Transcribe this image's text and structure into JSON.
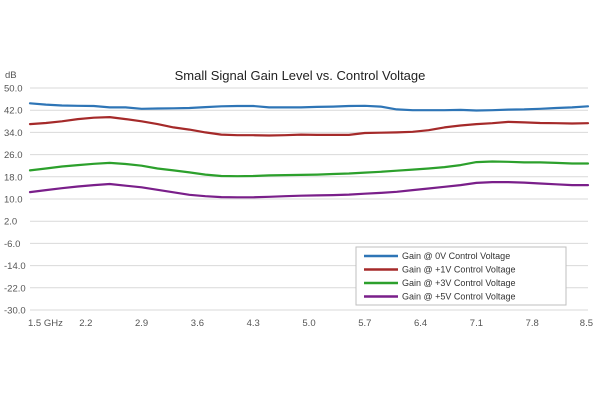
{
  "chart_data": {
    "type": "line",
    "title": "Small Signal Gain Level vs. Control Voltage",
    "ylabel": "dB",
    "xlabel": "",
    "ylim": [
      -30.0,
      50.0
    ],
    "xlim": [
      1.5,
      8.5
    ],
    "x_tick_labels": [
      "1.5 GHz",
      "2.2",
      "2.9",
      "3.6",
      "4.3",
      "5.0",
      "5.7",
      "6.4",
      "7.1",
      "7.8",
      "8.5"
    ],
    "y_tick_labels": [
      "50.0",
      "42.0",
      "34.0",
      "26.0",
      "18.0",
      "10.0",
      "2.0",
      "-6.0",
      "-14.0",
      "-22.0",
      "-30.0"
    ],
    "grid": "horizontal",
    "legend_position": "bottom-right",
    "x": [
      1.5,
      1.7,
      1.9,
      2.1,
      2.3,
      2.5,
      2.7,
      2.9,
      3.1,
      3.3,
      3.5,
      3.7,
      3.9,
      4.1,
      4.3,
      4.5,
      4.7,
      4.9,
      5.1,
      5.3,
      5.5,
      5.7,
      5.9,
      6.1,
      6.3,
      6.5,
      6.7,
      6.9,
      7.1,
      7.3,
      7.5,
      7.7,
      7.9,
      8.1,
      8.3,
      8.5
    ],
    "series": [
      {
        "name": "Gain @ 0V Control Voltage",
        "color": "#2e75b6",
        "values": [
          44.5,
          44.0,
          43.7,
          43.6,
          43.5,
          43.0,
          43.0,
          42.5,
          42.6,
          42.7,
          42.8,
          43.1,
          43.4,
          43.5,
          43.5,
          43.0,
          43.0,
          43.0,
          43.2,
          43.3,
          43.5,
          43.6,
          43.3,
          42.3,
          42.0,
          42.0,
          42.0,
          42.1,
          41.9,
          42.0,
          42.2,
          42.3,
          42.5,
          42.8,
          43.0,
          43.4
        ]
      },
      {
        "name": "Gain @ +1V Control Voltage",
        "color": "#a52a2a",
        "values": [
          37.0,
          37.4,
          38.0,
          38.8,
          39.3,
          39.5,
          38.8,
          38.0,
          37.0,
          35.8,
          35.0,
          34.0,
          33.2,
          33.0,
          33.0,
          32.9,
          33.0,
          33.2,
          33.1,
          33.1,
          33.1,
          33.8,
          33.9,
          34.0,
          34.2,
          34.8,
          35.8,
          36.5,
          37.0,
          37.3,
          37.8,
          37.6,
          37.4,
          37.3,
          37.2,
          37.3
        ]
      },
      {
        "name": "Gain @ +3V Control Voltage",
        "color": "#2ca02c",
        "values": [
          20.3,
          21.0,
          21.7,
          22.2,
          22.7,
          23.0,
          22.6,
          22.0,
          21.0,
          20.3,
          19.6,
          18.8,
          18.3,
          18.2,
          18.3,
          18.5,
          18.6,
          18.7,
          18.8,
          19.0,
          19.2,
          19.5,
          19.8,
          20.2,
          20.6,
          21.0,
          21.5,
          22.2,
          23.3,
          23.5,
          23.4,
          23.2,
          23.2,
          23.0,
          22.8,
          22.8
        ]
      },
      {
        "name": "Gain @ +5V Control Voltage",
        "color": "#7a1f8a",
        "values": [
          12.5,
          13.2,
          13.9,
          14.5,
          15.0,
          15.4,
          14.8,
          14.2,
          13.3,
          12.4,
          11.5,
          11.0,
          10.7,
          10.6,
          10.6,
          10.8,
          11.0,
          11.2,
          11.3,
          11.4,
          11.6,
          11.9,
          12.2,
          12.6,
          13.2,
          13.8,
          14.4,
          15.0,
          15.8,
          16.1,
          16.1,
          15.9,
          15.6,
          15.3,
          15.0,
          15.0
        ]
      }
    ]
  }
}
